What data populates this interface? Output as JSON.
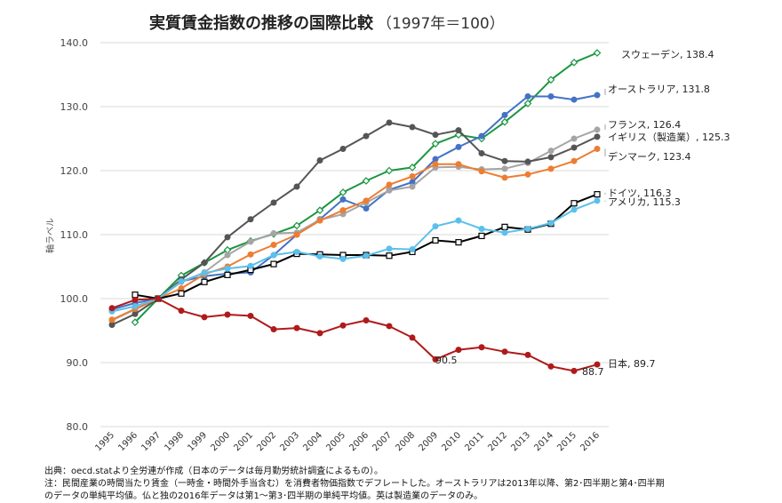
{
  "chart_data": {
    "type": "line",
    "title": "実質賃金指数の推移の国際比較",
    "subtitle": "（1997年＝100）",
    "ylabel": "軸ラベル",
    "xlabel": "",
    "ylim": [
      80,
      140
    ],
    "yticks": [
      "80.0",
      "90.0",
      "100.0",
      "110.0",
      "120.0",
      "130.0",
      "140.0"
    ],
    "x": [
      "1995",
      "1996",
      "1997",
      "1998",
      "1999",
      "2000",
      "2001",
      "2002",
      "2003",
      "2004",
      "2005",
      "2006",
      "2007",
      "2008",
      "2009",
      "2010",
      "2011",
      "2012",
      "2013",
      "2014",
      "2015",
      "2016"
    ],
    "grid": true,
    "legend": "end-of-line labels",
    "series": [
      {
        "name": "スウェーデン, 138.4",
        "color": "#1a9641",
        "marker": "diamond",
        "values": [
          null,
          96.3,
          100.0,
          103.6,
          105.6,
          107.6,
          109.0,
          110.1,
          111.4,
          113.8,
          116.6,
          118.4,
          120.0,
          120.5,
          124.2,
          125.6,
          125.0,
          127.6,
          130.5,
          134.2,
          136.9,
          138.4
        ]
      },
      {
        "name": "オーストラリア, 131.8",
        "color": "#4472c4",
        "marker": "circle",
        "values": [
          98.3,
          99.3,
          100.0,
          102.7,
          103.5,
          103.9,
          104.1,
          106.8,
          110.0,
          112.4,
          115.5,
          114.1,
          117.0,
          118.2,
          121.8,
          123.7,
          125.4,
          128.7,
          131.6,
          131.6,
          131.1,
          131.8
        ]
      },
      {
        "name": "フランス, 126.4",
        "color": "#a5a5a5",
        "marker": "circle",
        "values": [
          96.6,
          98.3,
          100.0,
          102.6,
          104.1,
          106.8,
          108.9,
          110.2,
          110.3,
          112.3,
          113.2,
          115.0,
          116.9,
          117.5,
          120.5,
          120.6,
          120.2,
          120.3,
          121.2,
          123.1,
          125.0,
          126.4
        ]
      },
      {
        "name": "イギリス（製造業）, 125.3",
        "color": "#555555",
        "marker": "circle",
        "values": [
          95.9,
          97.6,
          100.0,
          103.0,
          105.6,
          109.6,
          112.4,
          115.0,
          117.5,
          121.6,
          123.4,
          125.4,
          127.5,
          126.8,
          125.6,
          126.3,
          122.7,
          121.5,
          121.4,
          122.1,
          123.6,
          125.3
        ]
      },
      {
        "name": "デンマーク, 123.4",
        "color": "#ed7d31",
        "marker": "circle",
        "values": [
          96.7,
          98.4,
          100.0,
          101.6,
          103.8,
          105.0,
          106.9,
          108.4,
          110.0,
          112.2,
          113.8,
          115.3,
          117.8,
          119.1,
          121.0,
          121.0,
          119.9,
          118.9,
          119.4,
          120.3,
          121.5,
          123.4
        ]
      },
      {
        "name": "ドイツ, 116.3",
        "color": "#000000",
        "marker": "square",
        "values": [
          null,
          100.6,
          100.0,
          100.8,
          102.6,
          103.7,
          104.5,
          105.4,
          107.0,
          106.9,
          106.8,
          106.8,
          106.7,
          107.3,
          109.1,
          108.8,
          109.8,
          111.2,
          110.8,
          111.7,
          114.9,
          116.3
        ]
      },
      {
        "name": "アメリカ, 115.3",
        "color": "#5bc0eb",
        "marker": "circle",
        "values": [
          98.0,
          98.8,
          100.0,
          102.7,
          104.0,
          104.7,
          105.1,
          106.8,
          107.3,
          106.6,
          106.2,
          106.7,
          107.8,
          107.7,
          111.3,
          112.2,
          110.9,
          110.3,
          110.9,
          111.8,
          113.9,
          115.3
        ]
      },
      {
        "name": "日本, 89.7",
        "color": "#b01a1a",
        "marker": "circle",
        "values": [
          98.5,
          99.8,
          100.0,
          98.1,
          97.1,
          97.5,
          97.3,
          95.2,
          95.4,
          94.6,
          95.8,
          96.6,
          95.7,
          93.9,
          90.5,
          92.0,
          92.4,
          91.7,
          91.2,
          89.4,
          88.7,
          89.7
        ]
      }
    ],
    "annotations": [
      "90.5",
      "88.7"
    ]
  },
  "notes": {
    "source": "出典：oecd.statより全労連が作成（日本のデータは毎月勤労統計調査によるもの）。",
    "note1": "注：民間産業の時間当たり賃金（一時金・時間外手当含む）を消費者物価指数でデフレートした。オーストラリアは2013年以降、第2･四半期と第4･四半期",
    "note2": "のデータの単純平均値。仏と独の2016年データは第1～第3･四半期の単純平均値。英は製造業のデータのみ。"
  }
}
